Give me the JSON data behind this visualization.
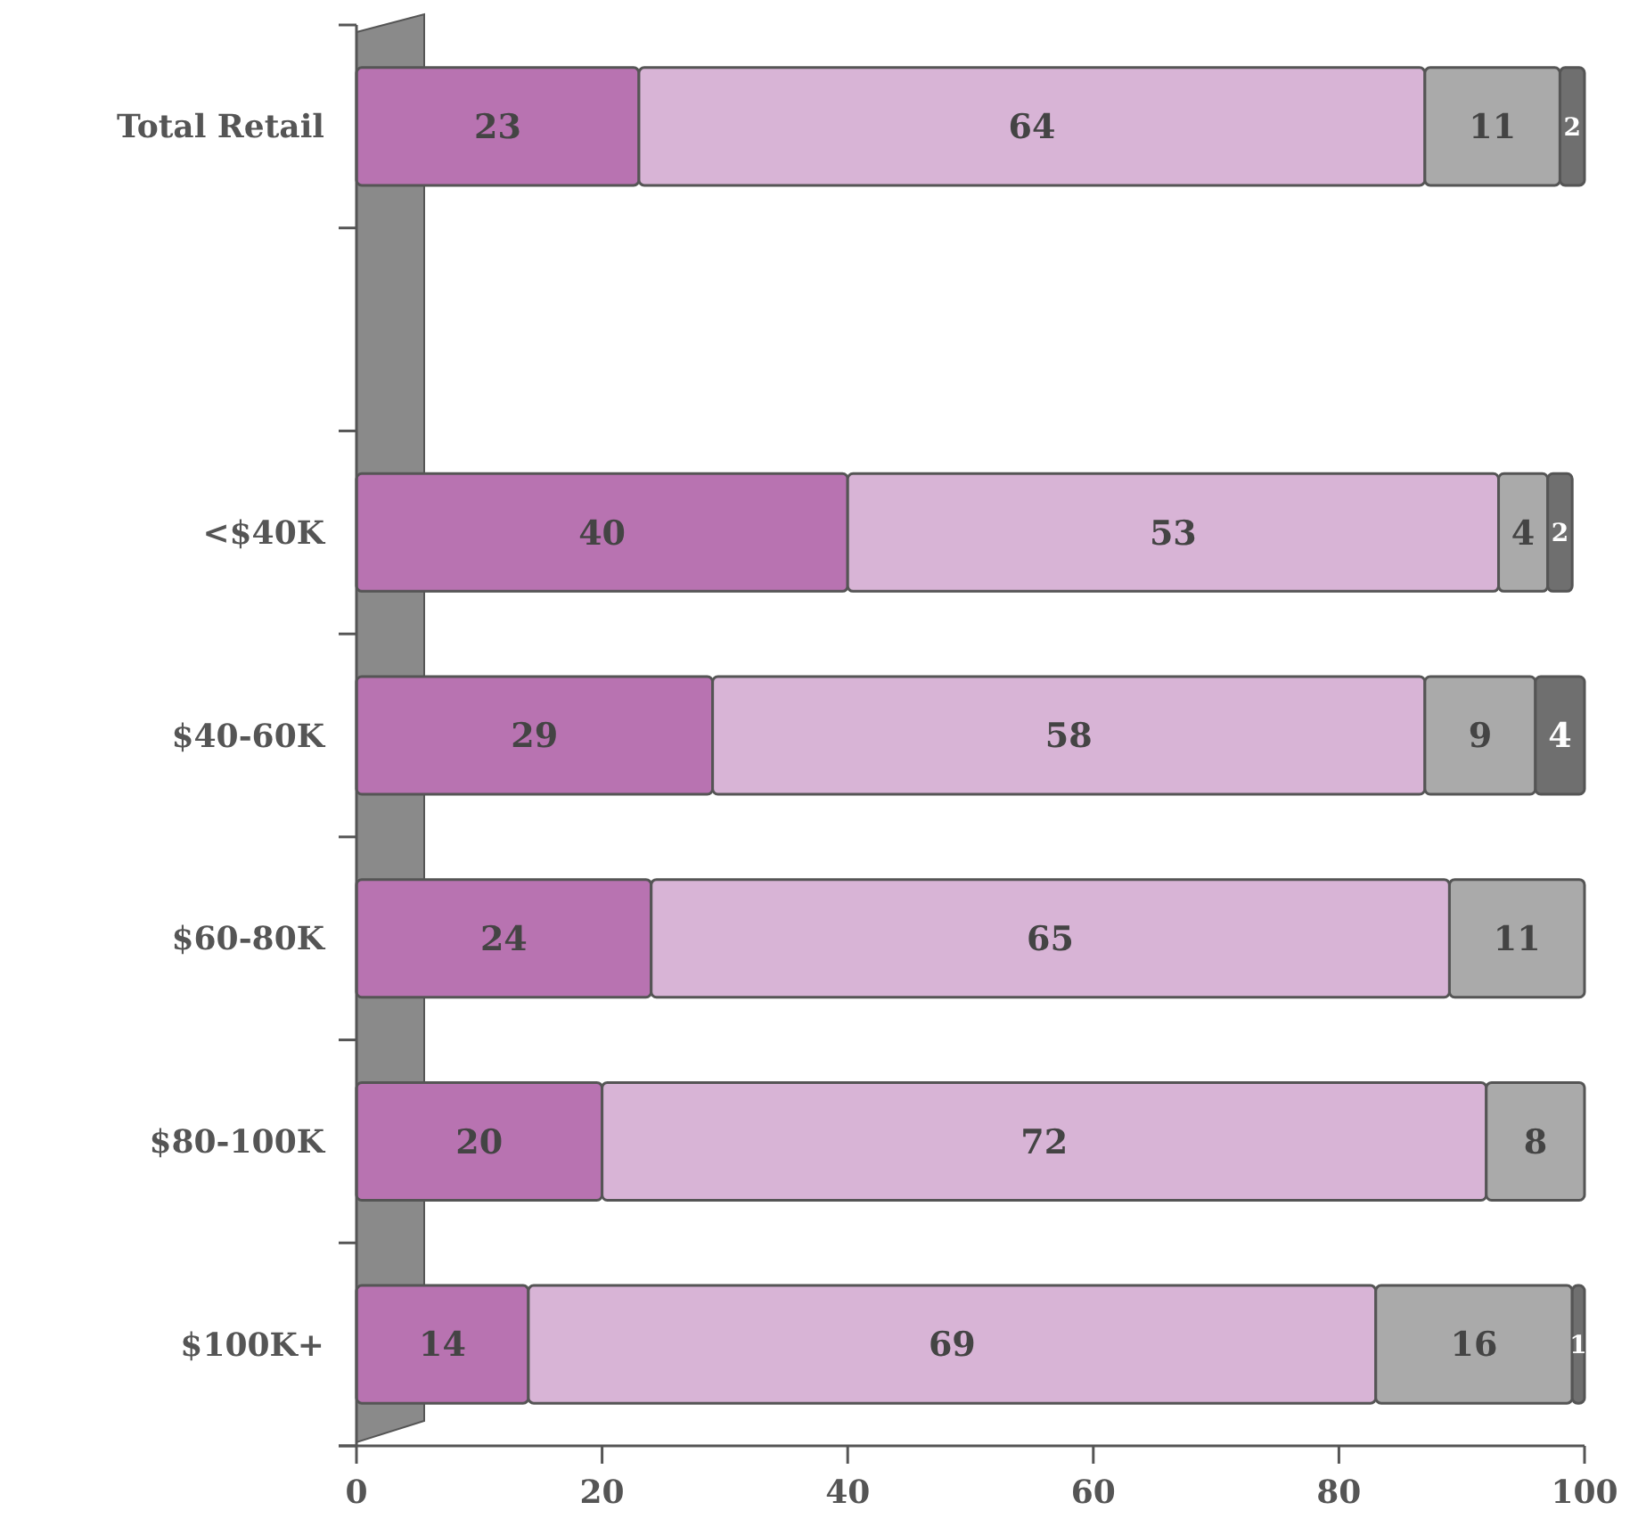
{
  "chart_data": {
    "type": "bar",
    "orientation": "horizontal",
    "stacked": true,
    "data_labels": true,
    "categories": [
      "Total Retail",
      null,
      "<$40K",
      "$40-60K",
      "$60-80K",
      "$80-100K",
      "$100K+"
    ],
    "series": [
      {
        "color": "#b873b1",
        "values": [
          23,
          null,
          40,
          29,
          24,
          20,
          14
        ]
      },
      {
        "color": "#d8b4d6",
        "values": [
          64,
          null,
          53,
          58,
          65,
          72,
          69
        ]
      },
      {
        "color": "#aaaaaa",
        "values": [
          11,
          null,
          4,
          9,
          11,
          8,
          16
        ]
      },
      {
        "color": "#6f6f6f",
        "values": [
          2,
          null,
          2,
          4,
          null,
          null,
          1
        ]
      }
    ],
    "xlim": [
      0,
      100
    ],
    "xticks": [
      0,
      20,
      40,
      60,
      80,
      100
    ],
    "grid": false
  }
}
